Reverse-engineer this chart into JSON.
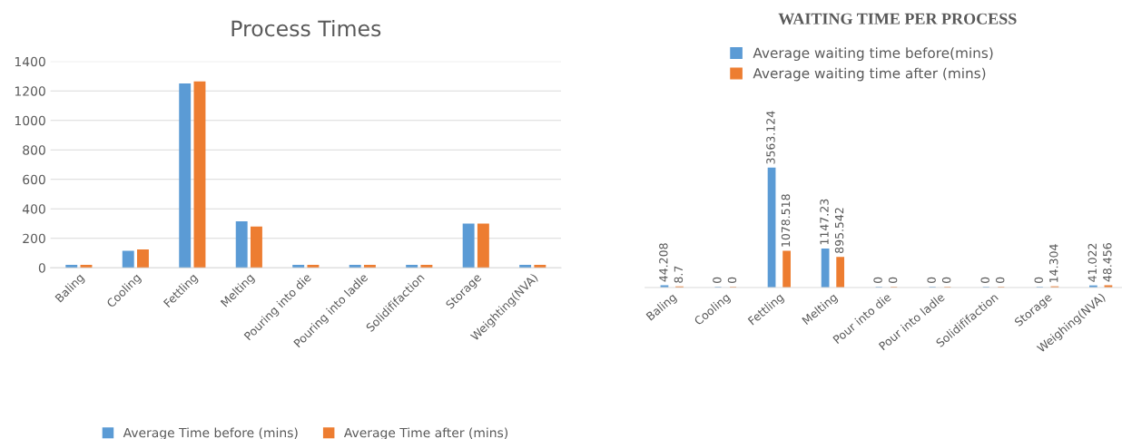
{
  "chart_data": [
    {
      "type": "bar",
      "title": "Process Times",
      "categories": [
        "Baling",
        "Cooling",
        "Fettling",
        "Melting",
        "Pouring into die",
        "Pouring into ladle",
        "Solidififaction",
        "Storage",
        "Weighting(NVA)"
      ],
      "series": [
        {
          "name": "Average Time before (mins)",
          "color": "#5b9bd5",
          "values": [
            15,
            110,
            1245,
            310,
            15,
            15,
            15,
            295,
            15
          ]
        },
        {
          "name": "Average Time after (mins)",
          "color": "#ed7d31",
          "values": [
            15,
            120,
            1260,
            275,
            15,
            15,
            15,
            295,
            15
          ]
        }
      ],
      "ylim": [
        0,
        1400
      ],
      "yticks": [
        0,
        200,
        400,
        600,
        800,
        1000,
        1200,
        1400
      ],
      "grid": "y",
      "legend": "bottom"
    },
    {
      "type": "bar",
      "title": "WAITING TIME PER PROCESS",
      "categories": [
        "Baling",
        "Cooling",
        "Fettling",
        "Melting",
        "Pour into die",
        "Pour into ladle",
        "Solidififaction",
        "Storage",
        "Weighing(NVA)"
      ],
      "series": [
        {
          "name": "Average waiting time before(mins)",
          "color": "#5b9bd5",
          "values": [
            44.208,
            0,
            3563.124,
            1147.23,
            0,
            0,
            0,
            0,
            41.022
          ]
        },
        {
          "name": "Average waiting time after (mins)",
          "color": "#ed7d31",
          "values": [
            8.7,
            0,
            1078.518,
            895.542,
            0,
            0,
            0,
            14.304,
            48.456
          ]
        }
      ],
      "data_labels": true,
      "legend": "top"
    }
  ]
}
